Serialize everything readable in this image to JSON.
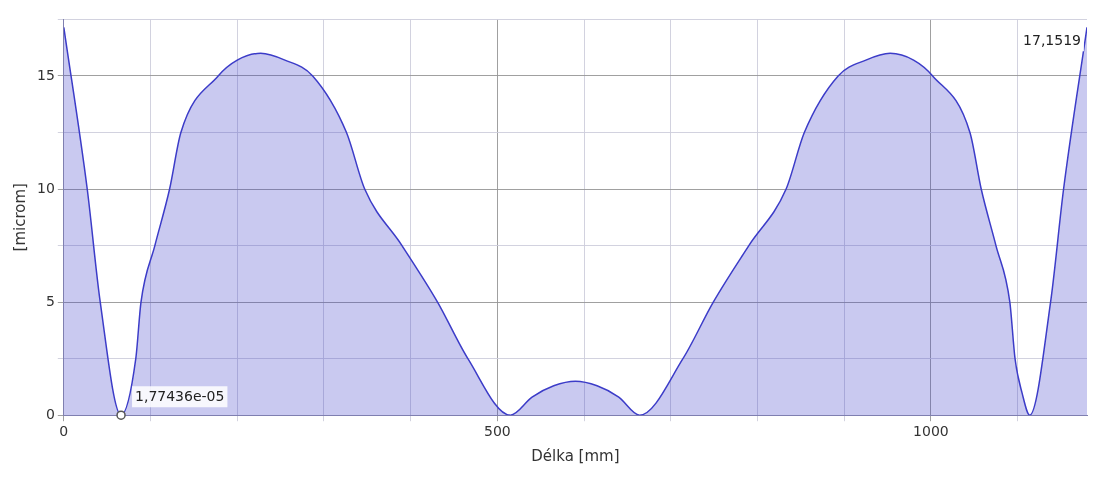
{
  "chart_data": {
    "type": "area",
    "xlabel": "Délka [mm]",
    "ylabel": "[microm]",
    "x": [
      0,
      27,
      42,
      66,
      83,
      89,
      105,
      122,
      135,
      178,
      200,
      227,
      255,
      287,
      326,
      347,
      390,
      431,
      466,
      515,
      540,
      565,
      590,
      615,
      640,
      664,
      714,
      749,
      790,
      833,
      854,
      893,
      925,
      953,
      980,
      1002,
      1045,
      1058,
      1075,
      1091,
      1097,
      1105,
      1114,
      1138,
      1153,
      1180
    ],
    "series": [
      {
        "color": "#3c3cc8",
        "values": [
          17.1519,
          10,
          5,
          1.77436e-05,
          2.5,
          5,
          7.5,
          10,
          12.5,
          15,
          15.7,
          16,
          15.7,
          15,
          12.5,
          10,
          7.5,
          5,
          2.5,
          0,
          0.8,
          1.3,
          1.5,
          1.3,
          0.8,
          0,
          2.5,
          5,
          7.5,
          10,
          12.5,
          15,
          15.7,
          16,
          15.7,
          15,
          12.5,
          10,
          7.5,
          5,
          2.5,
          1,
          0,
          5,
          10,
          17.1519
        ]
      }
    ],
    "xlim": [
      0,
      1180
    ],
    "xticks": [
      0,
      {
        "value": 100,
        "label": null
      },
      {
        "value": 200,
        "label": null
      },
      {
        "value": 300,
        "label": null
      },
      {
        "value": 400,
        "label": null
      },
      500,
      {
        "value": 600,
        "label": null
      },
      {
        "value": 700,
        "label": null
      },
      {
        "value": 800,
        "label": null
      },
      {
        "value": 900,
        "label": null
      },
      1000,
      {
        "value": 1100,
        "label": null
      }
    ],
    "ylim": [
      0,
      17.5
    ],
    "yticks": [
      0,
      {
        "value": 2.5,
        "label": null
      },
      5,
      {
        "value": 7.5,
        "label": null
      },
      10,
      {
        "value": 12.5,
        "label": null
      },
      15,
      {
        "value": 17.5,
        "label": null
      }
    ],
    "grid": true,
    "legend": false,
    "marker": "none",
    "line_style": "solid",
    "annotations": [
      {
        "text": "1,77436e-05",
        "x": 66,
        "y": 1.77436e-05
      },
      {
        "text": "17,1519",
        "x": 1180,
        "y": 17.1519
      }
    ]
  }
}
